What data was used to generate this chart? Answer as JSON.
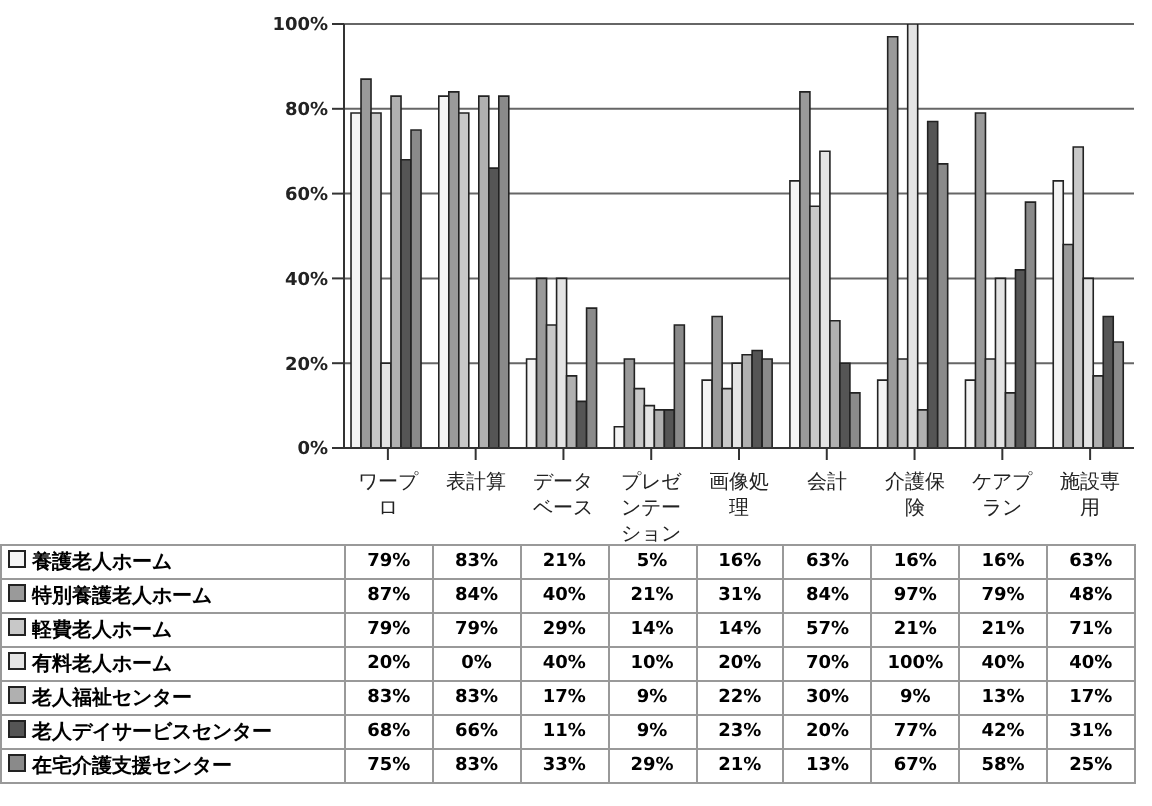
{
  "chart_data": {
    "type": "bar",
    "categories": [
      "ワープロ",
      "表計算",
      "データベース",
      "プレゼンテーション",
      "画像処理",
      "会計",
      "介護保険",
      "ケアプラン",
      "施設専用"
    ],
    "ylim": [
      0,
      100
    ],
    "yticks": [
      {
        "value": 0,
        "label": "0%"
      },
      {
        "value": 20,
        "label": "20%"
      },
      {
        "value": 40,
        "label": "40%"
      },
      {
        "value": 60,
        "label": "60%"
      },
      {
        "value": 80,
        "label": "80%"
      },
      {
        "value": 100,
        "label": "100%"
      }
    ],
    "grid": "y",
    "legend": "bottom left",
    "series": [
      {
        "name": "養護老人ホーム",
        "color": "#f4f4f4",
        "values": [
          79,
          83,
          21,
          5,
          16,
          63,
          16,
          16,
          63
        ],
        "value_labels": [
          "79%",
          "83%",
          "21%",
          "5%",
          "16%",
          "63%",
          "16%",
          "16%",
          "63%"
        ]
      },
      {
        "name": "特別養護老人ホーム",
        "color": "#9a9a9a",
        "values": [
          87,
          84,
          40,
          21,
          31,
          84,
          97,
          79,
          48
        ],
        "value_labels": [
          "87%",
          "84%",
          "40%",
          "21%",
          "31%",
          "84%",
          "97%",
          "79%",
          "48%"
        ]
      },
      {
        "name": "軽費老人ホーム",
        "color": "#c8c8c8",
        "values": [
          79,
          79,
          29,
          14,
          14,
          57,
          21,
          21,
          71
        ],
        "value_labels": [
          "79%",
          "79%",
          "29%",
          "14%",
          "14%",
          "57%",
          "21%",
          "21%",
          "71%"
        ]
      },
      {
        "name": "有料老人ホーム",
        "color": "#e4e4e4",
        "values": [
          20,
          0,
          40,
          10,
          20,
          70,
          100,
          40,
          40
        ],
        "value_labels": [
          "20%",
          "0%",
          "40%",
          "10%",
          "20%",
          "70%",
          "100%",
          "40%",
          "40%"
        ]
      },
      {
        "name": "老人福祉センター",
        "color": "#b0b0b0",
        "values": [
          83,
          83,
          17,
          9,
          22,
          30,
          9,
          13,
          17
        ],
        "value_labels": [
          "83%",
          "83%",
          "17%",
          "9%",
          "22%",
          "30%",
          "9%",
          "13%",
          "17%"
        ]
      },
      {
        "name": "老人デイサービスセンター",
        "color": "#555555",
        "values": [
          68,
          66,
          11,
          9,
          23,
          20,
          77,
          42,
          31
        ],
        "value_labels": [
          "68%",
          "66%",
          "11%",
          "9%",
          "23%",
          "20%",
          "77%",
          "42%",
          "31%"
        ]
      },
      {
        "name": "在宅介護支援センター",
        "color": "#8a8a8a",
        "values": [
          75,
          83,
          33,
          29,
          21,
          13,
          67,
          58,
          25
        ],
        "value_labels": [
          "75%",
          "83%",
          "33%",
          "29%",
          "21%",
          "13%",
          "67%",
          "58%",
          "25%"
        ]
      }
    ]
  }
}
